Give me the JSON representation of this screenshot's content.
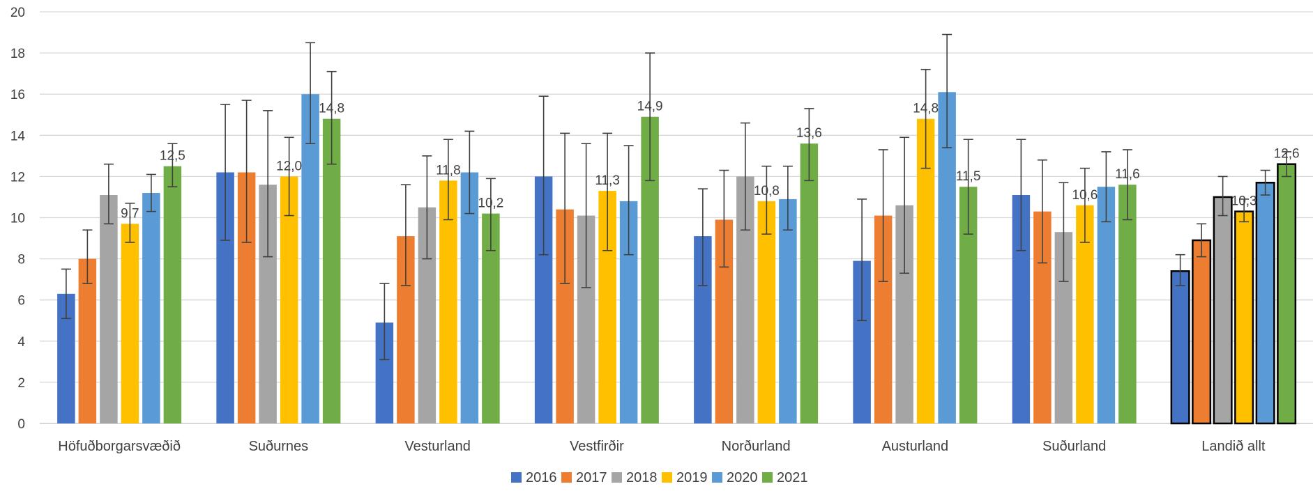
{
  "chart_data": {
    "type": "bar",
    "title": "",
    "xlabel": "",
    "ylabel": "",
    "ylim": [
      0,
      20
    ],
    "yticks": [
      "0",
      "2",
      "4",
      "6",
      "8",
      "10",
      "12",
      "14",
      "16",
      "18",
      "20"
    ],
    "grid": true,
    "legend": "bottom",
    "error_bars": true,
    "categories": [
      "Höfuðborgarsvæðið",
      "Suðurnes",
      "Vesturland",
      "Vestfirðir",
      "Norðurland",
      "Austurland",
      "Suðurland",
      "Landið allt"
    ],
    "highlighted_category": "Landið allt",
    "series": [
      {
        "name": "2016",
        "color": "#4472C4",
        "values": [
          6.3,
          12.2,
          4.9,
          12.0,
          9.1,
          7.9,
          11.1,
          7.4
        ],
        "err_low": [
          5.1,
          8.9,
          3.1,
          8.2,
          6.7,
          5.0,
          8.4,
          6.7
        ],
        "err_high": [
          7.5,
          15.5,
          6.8,
          15.9,
          11.4,
          10.9,
          13.8,
          8.2
        ]
      },
      {
        "name": "2017",
        "color": "#ED7D31",
        "values": [
          8.0,
          12.2,
          9.1,
          10.4,
          9.9,
          10.1,
          10.3,
          8.9
        ],
        "err_low": [
          6.8,
          8.8,
          6.7,
          6.8,
          7.6,
          6.9,
          7.8,
          8.1
        ],
        "err_high": [
          9.4,
          15.7,
          11.6,
          14.1,
          12.3,
          13.3,
          12.8,
          9.7
        ]
      },
      {
        "name": "2018",
        "color": "#A5A5A5",
        "values": [
          11.1,
          11.6,
          10.5,
          10.1,
          12.0,
          10.6,
          9.3,
          11.0
        ],
        "err_low": [
          9.7,
          8.1,
          8.0,
          6.6,
          9.4,
          7.3,
          6.9,
          10.1
        ],
        "err_high": [
          12.6,
          15.2,
          13.0,
          13.6,
          14.6,
          13.9,
          11.7,
          12.0
        ]
      },
      {
        "name": "2019",
        "color": "#FFC000",
        "values": [
          9.7,
          12.0,
          11.8,
          11.3,
          10.8,
          14.8,
          10.6,
          10.3
        ],
        "err_low": [
          8.8,
          10.1,
          9.9,
          8.4,
          9.2,
          12.4,
          8.8,
          9.8
        ],
        "err_high": [
          10.7,
          13.9,
          13.8,
          14.1,
          12.5,
          17.2,
          12.4,
          10.9
        ],
        "data_labels": [
          "9,7",
          "12,0",
          "11,8",
          "11,3",
          "10,8",
          "14,8",
          "10,6",
          "10,3"
        ]
      },
      {
        "name": "2020",
        "color": "#5B9BD5",
        "values": [
          11.2,
          16.0,
          12.2,
          10.8,
          10.9,
          16.1,
          11.5,
          11.7
        ],
        "err_low": [
          10.3,
          13.6,
          10.2,
          8.2,
          9.4,
          13.4,
          9.8,
          11.1
        ],
        "err_high": [
          12.1,
          18.5,
          14.2,
          13.5,
          12.5,
          18.9,
          13.2,
          12.3
        ]
      },
      {
        "name": "2021",
        "color": "#70AD47",
        "values": [
          12.5,
          14.8,
          10.2,
          14.9,
          13.6,
          11.5,
          11.6,
          12.6
        ],
        "err_low": [
          11.5,
          12.6,
          8.4,
          11.8,
          11.8,
          9.2,
          9.9,
          12.0
        ],
        "err_high": [
          13.6,
          17.1,
          11.9,
          18.0,
          15.3,
          13.8,
          13.3,
          13.2
        ],
        "data_labels": [
          "12,5",
          "14,8",
          "10,2",
          "14,9",
          "13,6",
          "11,5",
          "11,6",
          "12,6"
        ]
      }
    ]
  }
}
